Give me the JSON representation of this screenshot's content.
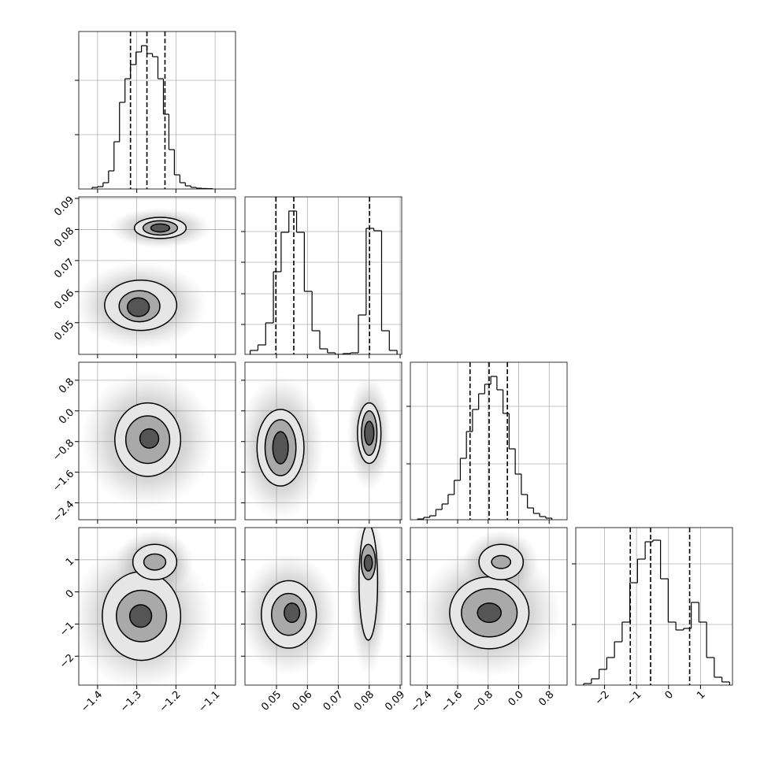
{
  "chart_data": {
    "type": "corner",
    "grid": true,
    "color": "#000000",
    "parameters": [
      {
        "lim": [
          -1.448,
          -1.048
        ],
        "ticks": [
          {
            "value": -1.4,
            "label": "−1.4"
          },
          {
            "value": -1.3,
            "label": "−1.3"
          },
          {
            "value": -1.2,
            "label": "−1.2"
          },
          {
            "value": -1.1,
            "label": "−1.1"
          }
        ]
      },
      {
        "lim": [
          0.0398,
          0.0905
        ],
        "ticks": [
          0.05,
          0.06,
          0.07,
          0.08,
          0.09
        ]
      },
      {
        "lim": [
          -2.84,
          1.27
        ],
        "ticks": [
          {
            "value": -2.4,
            "label": "−2.4"
          },
          {
            "value": -1.6,
            "label": "−1.6"
          },
          {
            "value": -0.8,
            "label": "−0.8"
          },
          {
            "value": 0,
            "label": "0.0"
          },
          0.8
        ]
      },
      {
        "lim": [
          -2.9,
          2.0
        ],
        "ticks": [
          {
            "value": -2,
            "label": "−2"
          },
          {
            "value": -1,
            "label": "−1"
          },
          0,
          1
        ]
      }
    ],
    "histograms": [
      {
        "bins": [
          -1.414,
          -1.4,
          -1.386,
          -1.372,
          -1.358,
          -1.344,
          -1.33,
          -1.316,
          -1.302,
          -1.288,
          -1.274,
          -1.26,
          -1.246,
          -1.232,
          -1.218,
          -1.204,
          -1.19,
          -1.176,
          -1.162,
          -1.148,
          -1.134,
          -1.12,
          -1.106
        ],
        "counts": [
          1,
          1.5,
          4,
          11.5,
          30,
          55,
          70,
          79,
          87,
          91,
          86,
          84,
          70,
          47.5,
          25,
          9,
          4,
          2,
          1,
          0.5,
          0.3,
          0.2
        ],
        "quantiles": [
          -1.316,
          -1.274,
          -1.228
        ],
        "ylim": [
          0,
          100
        ],
        "yticks": [
          34.5,
          69
        ]
      },
      {
        "bins": [
          0.0415,
          0.044,
          0.0465,
          0.049,
          0.0515,
          0.054,
          0.0565,
          0.059,
          0.0615,
          0.064,
          0.0665,
          0.069,
          0.0715,
          0.074,
          0.0765,
          0.079,
          0.0815,
          0.084,
          0.0865,
          0.089
        ],
        "counts": [
          2.5,
          6,
          20,
          52.5,
          77.5,
          91,
          77.5,
          40,
          15,
          3.5,
          1,
          0,
          0.5,
          1,
          25,
          80,
          78.5,
          15,
          2.5
        ],
        "quantiles": [
          0.0498,
          0.0556,
          0.0801
        ],
        "ylim": [
          0,
          100
        ],
        "yticks": [
          19,
          38.5,
          58.5,
          78
        ]
      },
      {
        "bins": [
          -2.65,
          -2.49,
          -2.33,
          -2.17,
          -2.01,
          -1.85,
          -1.69,
          -1.53,
          -1.37,
          -1.21,
          -1.05,
          -0.89,
          -0.73,
          -0.57,
          -0.41,
          -0.25,
          -0.09,
          0.07,
          0.23,
          0.39,
          0.55,
          0.71,
          0.87
        ],
        "counts": [
          0.5,
          1.5,
          2.5,
          6.5,
          10,
          16,
          25,
          39,
          56,
          70,
          80,
          86,
          91,
          82.5,
          67.5,
          45,
          29,
          16,
          7.5,
          4,
          2,
          1
        ],
        "quantiles": [
          -1.275,
          -0.775,
          -0.296
        ],
        "ylim": [
          0,
          100
        ],
        "yticks": [
          35.5,
          72
        ]
      },
      {
        "bins": [
          -2.65,
          -2.41,
          -2.17,
          -1.93,
          -1.69,
          -1.45,
          -1.21,
          -0.97,
          -0.73,
          -0.49,
          -0.25,
          -0.01,
          0.23,
          0.47,
          0.71,
          0.95,
          1.19,
          1.43,
          1.67,
          1.91
        ],
        "counts": [
          1,
          4,
          10,
          17.5,
          27.5,
          40,
          65,
          80,
          91,
          92,
          67.5,
          40,
          35,
          36,
          52.5,
          40,
          17.5,
          5,
          2
        ],
        "quantiles": [
          -1.195,
          -0.56,
          0.66
        ],
        "ylim": [
          0,
          100
        ],
        "yticks": [
          38.5,
          77
        ]
      }
    ],
    "pairs": [
      [
        {
          "clouds": [
            {
              "x": -1.24,
              "y": 0.0805,
              "rx": 0.13,
              "ry": 0.0065
            },
            {
              "x": -1.29,
              "y": 0.0556,
              "rx": 0.17,
              "ry": 0.014
            }
          ],
          "contours": [
            [
              {
                "x": -1.24,
                "y": 0.0805,
                "rx": 0.066,
                "ry": 0.0034
              },
              {
                "x": -1.29,
                "y": 0.0556,
                "rx": 0.092,
                "ry": 0.0081
              }
            ],
            [
              {
                "x": -1.24,
                "y": 0.0805,
                "rx": 0.044,
                "ry": 0.0023
              },
              {
                "x": -1.293,
                "y": 0.0553,
                "rx": 0.052,
                "ry": 0.005
              }
            ],
            [
              {
                "x": -1.24,
                "y": 0.0805,
                "rx": 0.024,
                "ry": 0.0013
              },
              {
                "x": -1.296,
                "y": 0.055,
                "rx": 0.028,
                "ry": 0.003
              }
            ]
          ]
        }
      ],
      [
        {
          "clouds": [
            {
              "x": -1.272,
              "y": -0.75,
              "rx": 0.17,
              "ry": 1.8
            }
          ],
          "contours": [
            [
              {
                "x": -1.272,
                "y": -0.75,
                "rx": 0.084,
                "ry": 0.96
              }
            ],
            [
              {
                "x": -1.272,
                "y": -0.75,
                "rx": 0.056,
                "ry": 0.62
              }
            ],
            [
              {
                "x": -1.268,
                "y": -0.72,
                "rx": 0.024,
                "ry": 0.25
              }
            ]
          ]
        },
        {
          "clouds": [
            {
              "x": 0.0513,
              "y": -0.96,
              "rx": 0.014,
              "ry": 1.9
            },
            {
              "x": 0.08,
              "y": -0.58,
              "rx": 0.007,
              "ry": 1.5
            }
          ],
          "contours": [
            [
              {
                "x": 0.0513,
                "y": -0.96,
                "rx": 0.0076,
                "ry": 1.0
              },
              {
                "x": 0.08,
                "y": -0.58,
                "rx": 0.0038,
                "ry": 0.79
              }
            ],
            [
              {
                "x": 0.0513,
                "y": -0.96,
                "rx": 0.005,
                "ry": 0.73
              },
              {
                "x": 0.08,
                "y": -0.58,
                "rx": 0.0025,
                "ry": 0.58
              }
            ],
            [
              {
                "x": 0.0513,
                "y": -0.96,
                "rx": 0.0025,
                "ry": 0.42
              },
              {
                "x": 0.08,
                "y": -0.58,
                "rx": 0.0015,
                "ry": 0.31
              }
            ]
          ]
        }
      ],
      [
        {
          "clouds": [
            {
              "x": -1.288,
              "y": -0.75,
              "rx": 0.18,
              "ry": 2.3
            },
            {
              "x": -1.254,
              "y": 0.93,
              "rx": 0.1,
              "ry": 1.0
            }
          ],
          "contours": [
            [
              {
                "x": -1.288,
                "y": -0.75,
                "rx": 0.1,
                "ry": 1.38
              },
              {
                "x": -1.254,
                "y": 0.93,
                "rx": 0.056,
                "ry": 0.55
              }
            ],
            [
              {
                "x": -1.288,
                "y": -0.75,
                "rx": 0.064,
                "ry": 0.8
              },
              {
                "x": -1.254,
                "y": 0.93,
                "rx": 0.028,
                "ry": 0.25
              }
            ],
            [
              {
                "x": -1.29,
                "y": -0.75,
                "rx": 0.028,
                "ry": 0.35
              }
            ]
          ]
        },
        {
          "clouds": [
            {
              "x": 0.054,
              "y": -0.7,
              "rx": 0.016,
              "ry": 1.9
            },
            {
              "x": 0.0797,
              "y": 0.0,
              "rx": 0.006,
              "ry": 2.6
            }
          ],
          "contours": [
            [
              {
                "x": 0.054,
                "y": -0.7,
                "rx": 0.0089,
                "ry": 1.05
              },
              {
                "x": 0.0797,
                "y": 0.3,
                "rx": 0.003,
                "ry": 1.8
              }
            ],
            [
              {
                "x": 0.054,
                "y": -0.7,
                "rx": 0.0056,
                "ry": 0.65
              },
              {
                "x": 0.0797,
                "y": 0.93,
                "rx": 0.0023,
                "ry": 0.55
              }
            ],
            [
              {
                "x": 0.055,
                "y": -0.65,
                "rx": 0.0025,
                "ry": 0.3
              },
              {
                "x": 0.0797,
                "y": 0.9,
                "rx": 0.0013,
                "ry": 0.25
              }
            ]
          ]
        },
        {
          "clouds": [
            {
              "x": -0.77,
              "y": -0.65,
              "rx": 1.9,
              "ry": 2.0
            },
            {
              "x": -0.46,
              "y": 0.93,
              "rx": 1.0,
              "ry": 1.0
            }
          ],
          "contours": [
            [
              {
                "x": -0.77,
                "y": -0.65,
                "rx": 1.04,
                "ry": 1.12
              },
              {
                "x": -0.46,
                "y": 0.93,
                "rx": 0.58,
                "ry": 0.55
              }
            ],
            [
              {
                "x": -0.77,
                "y": -0.65,
                "rx": 0.73,
                "ry": 0.75
              },
              {
                "x": -0.46,
                "y": 0.93,
                "rx": 0.25,
                "ry": 0.2
              }
            ],
            [
              {
                "x": -0.77,
                "y": -0.65,
                "rx": 0.31,
                "ry": 0.3
              }
            ]
          ]
        }
      ]
    ]
  }
}
